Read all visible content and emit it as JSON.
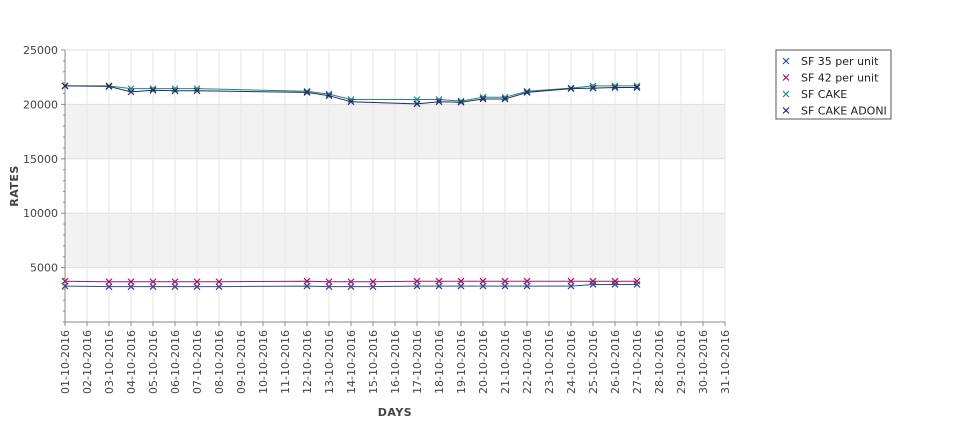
{
  "chart_data": {
    "type": "line",
    "title": "",
    "xlabel": "DAYS",
    "ylabel": "RATES",
    "ylim": [
      0,
      25000
    ],
    "yticks": [
      5000,
      10000,
      15000,
      20000,
      25000
    ],
    "ytick_labels": [
      "5000",
      "10000",
      "15000",
      "20000",
      "25000"
    ],
    "x_tick_labels": [
      "01-10-2016",
      "02-10-2016",
      "03-10-2016",
      "04-10-2016",
      "05-10-2016",
      "06-10-2016",
      "07-10-2016",
      "08-10-2016",
      "09-10-2016",
      "10-10-2016",
      "11-10-2016",
      "12-10-2016",
      "13-10-2016",
      "14-10-2016",
      "15-10-2016",
      "16-10-2016",
      "17-10-2016",
      "18-10-2016",
      "19-10-2016",
      "20-10-2016",
      "21-10-2016",
      "22-10-2016",
      "23-10-2016",
      "24-10-2016",
      "25-10-2016",
      "26-10-2016",
      "27-10-2016",
      "28-10-2016",
      "29-10-2016",
      "30-10-2016",
      "31-10-2016"
    ],
    "grid": true,
    "legend_position": "top-right",
    "series": [
      {
        "name": "SF 35 per unit",
        "color": "#3a4a8a",
        "points": [
          {
            "x": "01-10-2016",
            "y": 3300
          },
          {
            "x": "03-10-2016",
            "y": 3250
          },
          {
            "x": "04-10-2016",
            "y": 3250
          },
          {
            "x": "05-10-2016",
            "y": 3250
          },
          {
            "x": "06-10-2016",
            "y": 3250
          },
          {
            "x": "07-10-2016",
            "y": 3250
          },
          {
            "x": "08-10-2016",
            "y": 3250
          },
          {
            "x": "12-10-2016",
            "y": 3300
          },
          {
            "x": "13-10-2016",
            "y": 3250
          },
          {
            "x": "14-10-2016",
            "y": 3250
          },
          {
            "x": "15-10-2016",
            "y": 3250
          },
          {
            "x": "17-10-2016",
            "y": 3300
          },
          {
            "x": "18-10-2016",
            "y": 3300
          },
          {
            "x": "19-10-2016",
            "y": 3300
          },
          {
            "x": "20-10-2016",
            "y": 3300
          },
          {
            "x": "21-10-2016",
            "y": 3300
          },
          {
            "x": "22-10-2016",
            "y": 3300
          },
          {
            "x": "24-10-2016",
            "y": 3300
          },
          {
            "x": "25-10-2016",
            "y": 3450
          },
          {
            "x": "26-10-2016",
            "y": 3450
          },
          {
            "x": "27-10-2016",
            "y": 3450
          }
        ]
      },
      {
        "name": "SF 42 per unit",
        "color": "#a0186e",
        "points": [
          {
            "x": "01-10-2016",
            "y": 3750
          },
          {
            "x": "03-10-2016",
            "y": 3700
          },
          {
            "x": "04-10-2016",
            "y": 3700
          },
          {
            "x": "05-10-2016",
            "y": 3700
          },
          {
            "x": "06-10-2016",
            "y": 3700
          },
          {
            "x": "07-10-2016",
            "y": 3700
          },
          {
            "x": "08-10-2016",
            "y": 3700
          },
          {
            "x": "12-10-2016",
            "y": 3750
          },
          {
            "x": "13-10-2016",
            "y": 3700
          },
          {
            "x": "14-10-2016",
            "y": 3700
          },
          {
            "x": "15-10-2016",
            "y": 3700
          },
          {
            "x": "17-10-2016",
            "y": 3750
          },
          {
            "x": "18-10-2016",
            "y": 3750
          },
          {
            "x": "19-10-2016",
            "y": 3750
          },
          {
            "x": "20-10-2016",
            "y": 3750
          },
          {
            "x": "21-10-2016",
            "y": 3750
          },
          {
            "x": "22-10-2016",
            "y": 3750
          },
          {
            "x": "24-10-2016",
            "y": 3750
          },
          {
            "x": "25-10-2016",
            "y": 3750
          },
          {
            "x": "26-10-2016",
            "y": 3750
          },
          {
            "x": "27-10-2016",
            "y": 3750
          }
        ]
      },
      {
        "name": "SF CAKE",
        "color": "#1a8a8a",
        "points": [
          {
            "x": "01-10-2016",
            "y": 21700
          },
          {
            "x": "03-10-2016",
            "y": 21700
          },
          {
            "x": "04-10-2016",
            "y": 21450
          },
          {
            "x": "05-10-2016",
            "y": 21450
          },
          {
            "x": "06-10-2016",
            "y": 21450
          },
          {
            "x": "07-10-2016",
            "y": 21450
          },
          {
            "x": "12-10-2016",
            "y": 21200
          },
          {
            "x": "13-10-2016",
            "y": 20950
          },
          {
            "x": "14-10-2016",
            "y": 20450
          },
          {
            "x": "17-10-2016",
            "y": 20450
          },
          {
            "x": "18-10-2016",
            "y": 20450
          },
          {
            "x": "19-10-2016",
            "y": 20300
          },
          {
            "x": "20-10-2016",
            "y": 20650
          },
          {
            "x": "21-10-2016",
            "y": 20650
          },
          {
            "x": "22-10-2016",
            "y": 21200
          },
          {
            "x": "24-10-2016",
            "y": 21500
          },
          {
            "x": "25-10-2016",
            "y": 21700
          },
          {
            "x": "26-10-2016",
            "y": 21700
          },
          {
            "x": "27-10-2016",
            "y": 21700
          }
        ]
      },
      {
        "name": "SF CAKE ADONI",
        "color": "#2a2a5a",
        "points": [
          {
            "x": "01-10-2016",
            "y": 21700
          },
          {
            "x": "03-10-2016",
            "y": 21650
          },
          {
            "x": "04-10-2016",
            "y": 21150
          },
          {
            "x": "05-10-2016",
            "y": 21300
          },
          {
            "x": "06-10-2016",
            "y": 21250
          },
          {
            "x": "07-10-2016",
            "y": 21250
          },
          {
            "x": "12-10-2016",
            "y": 21100
          },
          {
            "x": "13-10-2016",
            "y": 20800
          },
          {
            "x": "14-10-2016",
            "y": 20250
          },
          {
            "x": "17-10-2016",
            "y": 20050
          },
          {
            "x": "18-10-2016",
            "y": 20250
          },
          {
            "x": "19-10-2016",
            "y": 20200
          },
          {
            "x": "20-10-2016",
            "y": 20500
          },
          {
            "x": "21-10-2016",
            "y": 20500
          },
          {
            "x": "22-10-2016",
            "y": 21100
          },
          {
            "x": "24-10-2016",
            "y": 21450
          },
          {
            "x": "25-10-2016",
            "y": 21500
          },
          {
            "x": "26-10-2016",
            "y": 21550
          },
          {
            "x": "27-10-2016",
            "y": 21550
          }
        ]
      }
    ]
  }
}
